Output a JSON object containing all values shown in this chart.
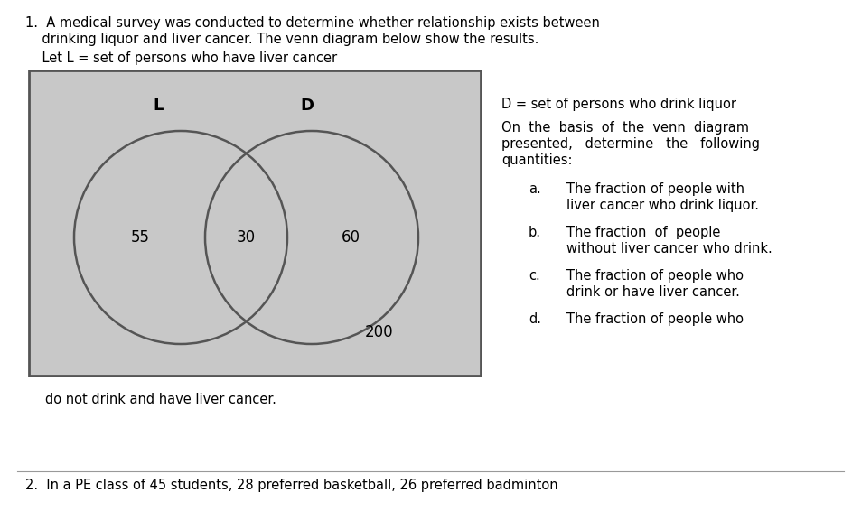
{
  "bg_color": "#ffffff",
  "venn_bg": "#c8c8c8",
  "venn_border_color": "#555555",
  "circle_color": "#555555",
  "circle_linewidth": 1.8,
  "figw": 9.43,
  "figh": 5.87,
  "dpi": 100,
  "title_line1": "1.  A medical survey was conducted to determine whether relationship exists between",
  "title_line2": "    drinking liquor and liver cancer. The venn diagram below show the results.",
  "let_L_line": "    Let L = set of persons who have liver cancer",
  "right_D_line": "D = set of persons who drink liquor",
  "on_basis_1": "On  the  basis  of  the  venn  diagram",
  "on_basis_2": "presented,   determine   the   following",
  "on_basis_3": "quantities:",
  "item_a_label": "a.",
  "item_a_1": "The fraction of people with",
  "item_a_2": "liver cancer who drink liquor.",
  "item_b_label": "b.",
  "item_b_1": "The fraction  of  people",
  "item_b_2": "without liver cancer who drink.",
  "item_c_label": "c.",
  "item_c_1": "The fraction of people who",
  "item_c_2": "drink or have liver cancer.",
  "item_d_label": "d.",
  "item_d_1": "The fraction of people who",
  "footer_text": "do not drink and have liver cancer.",
  "bottom_text": "2.  In a PE class of 45 students, 28 preferred basketball, 26 preferred badminton",
  "label_L": "L",
  "label_D": "D",
  "val_55": "55",
  "val_30": "30",
  "val_60": "60",
  "val_200": "200",
  "font_size_title": 10.5,
  "font_size_venn_label": 13,
  "font_size_venn_num": 12,
  "font_size_right": 10.5,
  "font_family": "DejaVu Sans"
}
